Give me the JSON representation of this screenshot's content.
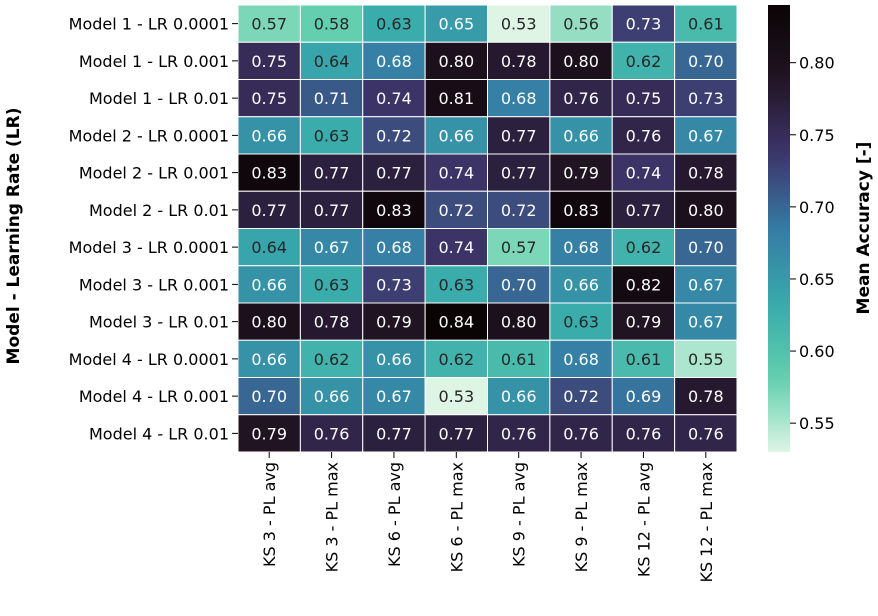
{
  "chart_data": {
    "type": "heatmap",
    "title": "",
    "ylabel": "Model - Learning Rate (LR)",
    "xlabel": "",
    "rows": [
      "Model 1 - LR 0.0001",
      "Model 1 - LR 0.001",
      "Model 1 - LR 0.01",
      "Model 2 - LR 0.0001",
      "Model 2 - LR 0.001",
      "Model 2 - LR 0.01",
      "Model 3 - LR 0.0001",
      "Model 3 - LR 0.001",
      "Model 3 - LR 0.01",
      "Model 4 - LR 0.0001",
      "Model 4 - LR 0.001",
      "Model 4 - LR 0.01"
    ],
    "columns": [
      "KS 3 - PL avg",
      "KS 3 - PL max",
      "KS 6 - PL avg",
      "KS 6 - PL max",
      "KS 9 - PL avg",
      "KS 9 - PL max",
      "KS 12 - PL avg",
      "KS 12 - PL max"
    ],
    "values": [
      [
        0.57,
        0.58,
        0.63,
        0.65,
        0.53,
        0.56,
        0.73,
        0.61
      ],
      [
        0.75,
        0.64,
        0.68,
        0.8,
        0.78,
        0.8,
        0.62,
        0.7
      ],
      [
        0.75,
        0.71,
        0.74,
        0.81,
        0.68,
        0.76,
        0.75,
        0.73
      ],
      [
        0.66,
        0.63,
        0.72,
        0.66,
        0.77,
        0.66,
        0.76,
        0.67
      ],
      [
        0.83,
        0.77,
        0.77,
        0.74,
        0.77,
        0.79,
        0.74,
        0.78
      ],
      [
        0.77,
        0.77,
        0.83,
        0.72,
        0.72,
        0.83,
        0.77,
        0.8
      ],
      [
        0.64,
        0.67,
        0.68,
        0.74,
        0.57,
        0.68,
        0.62,
        0.7
      ],
      [
        0.66,
        0.63,
        0.73,
        0.63,
        0.7,
        0.66,
        0.82,
        0.67
      ],
      [
        0.8,
        0.78,
        0.79,
        0.84,
        0.8,
        0.63,
        0.79,
        0.67
      ],
      [
        0.66,
        0.62,
        0.66,
        0.62,
        0.61,
        0.68,
        0.61,
        0.55
      ],
      [
        0.7,
        0.66,
        0.67,
        0.53,
        0.66,
        0.72,
        0.69,
        0.78
      ],
      [
        0.79,
        0.76,
        0.77,
        0.77,
        0.76,
        0.76,
        0.76,
        0.76
      ]
    ],
    "colorbar": {
      "label": "Mean Accuracy [-]",
      "vmin": 0.53,
      "vmax": 0.84,
      "ticks": [
        "0.55",
        "0.60",
        "0.65",
        "0.70",
        "0.75",
        "0.80"
      ],
      "colormap": "mako_r",
      "stops": [
        "#def5e5",
        "#60ceac",
        "#38aaac",
        "#357ba3",
        "#3e356b",
        "#211423",
        "#0b0405"
      ]
    },
    "grid": true,
    "colorbar_placement": "right"
  }
}
